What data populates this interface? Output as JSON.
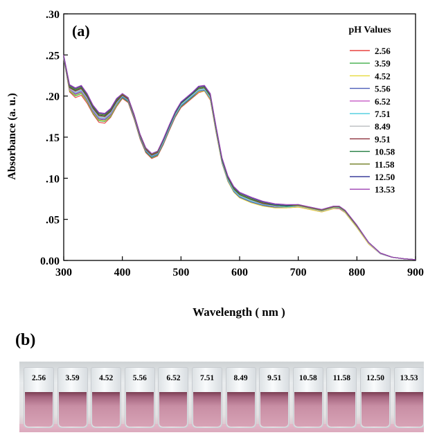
{
  "chart_data": {
    "type": "line",
    "panel_label": "(a)",
    "xlabel": "Wavelength ( nm )",
    "ylabel": "Absorbance (a. u.)",
    "xlim": [
      300,
      900
    ],
    "ylim": [
      0.0,
      0.3
    ],
    "x_ticks": [
      300,
      400,
      500,
      600,
      700,
      800,
      900
    ],
    "x_tick_labels": [
      "300",
      "400",
      "500",
      "600",
      "700",
      "800",
      "900"
    ],
    "y_ticks": [
      0.0,
      0.05,
      0.1,
      0.15,
      0.2,
      0.25,
      0.3
    ],
    "y_tick_labels": [
      "0.00",
      ".05",
      ".10",
      ".15",
      ".20",
      ".25",
      ".30"
    ],
    "grid": false,
    "legend_title": "pH Values",
    "legend_position": "top-right",
    "x": [
      300,
      310,
      320,
      330,
      340,
      350,
      360,
      370,
      380,
      390,
      400,
      410,
      420,
      430,
      440,
      450,
      460,
      470,
      480,
      490,
      500,
      510,
      520,
      530,
      540,
      550,
      560,
      570,
      580,
      590,
      600,
      620,
      640,
      660,
      680,
      700,
      720,
      740,
      760,
      770,
      780,
      800,
      820,
      840,
      860,
      880,
      900
    ],
    "series": [
      {
        "name": "2.56",
        "color": "#e8423f",
        "values": [
          0.245,
          0.205,
          0.198,
          0.201,
          0.191,
          0.178,
          0.168,
          0.167,
          0.174,
          0.187,
          0.197,
          0.192,
          0.172,
          0.148,
          0.131,
          0.124,
          0.127,
          0.141,
          0.158,
          0.174,
          0.186,
          0.192,
          0.198,
          0.204,
          0.206,
          0.195,
          0.155,
          0.118,
          0.096,
          0.084,
          0.077,
          0.071,
          0.067,
          0.064,
          0.064,
          0.065,
          0.062,
          0.059,
          0.063,
          0.063,
          0.058,
          0.04,
          0.02,
          0.008,
          0.004,
          0.002,
          0.001
        ]
      },
      {
        "name": "3.59",
        "color": "#3fae49",
        "values": [
          0.245,
          0.206,
          0.2,
          0.203,
          0.193,
          0.179,
          0.17,
          0.169,
          0.175,
          0.188,
          0.198,
          0.193,
          0.173,
          0.149,
          0.132,
          0.125,
          0.128,
          0.142,
          0.159,
          0.175,
          0.187,
          0.193,
          0.199,
          0.205,
          0.207,
          0.196,
          0.156,
          0.119,
          0.097,
          0.085,
          0.078,
          0.072,
          0.068,
          0.065,
          0.065,
          0.066,
          0.063,
          0.06,
          0.064,
          0.064,
          0.059,
          0.041,
          0.021,
          0.008,
          0.004,
          0.002,
          0.001
        ]
      },
      {
        "name": "4.52",
        "color": "#e6d93a",
        "values": [
          0.246,
          0.207,
          0.201,
          0.204,
          0.194,
          0.18,
          0.171,
          0.17,
          0.176,
          0.189,
          0.199,
          0.194,
          0.174,
          0.15,
          0.133,
          0.126,
          0.129,
          0.143,
          0.16,
          0.176,
          0.188,
          0.194,
          0.2,
          0.205,
          0.206,
          0.196,
          0.156,
          0.118,
          0.096,
          0.083,
          0.076,
          0.07,
          0.066,
          0.064,
          0.064,
          0.065,
          0.062,
          0.059,
          0.063,
          0.064,
          0.058,
          0.04,
          0.02,
          0.008,
          0.004,
          0.002,
          0.001
        ]
      },
      {
        "name": "5.56",
        "color": "#4a5bb8",
        "values": [
          0.246,
          0.208,
          0.202,
          0.205,
          0.195,
          0.181,
          0.172,
          0.171,
          0.177,
          0.19,
          0.199,
          0.194,
          0.174,
          0.15,
          0.133,
          0.126,
          0.129,
          0.143,
          0.16,
          0.176,
          0.188,
          0.194,
          0.2,
          0.206,
          0.207,
          0.197,
          0.157,
          0.119,
          0.097,
          0.084,
          0.077,
          0.071,
          0.067,
          0.065,
          0.065,
          0.066,
          0.063,
          0.06,
          0.064,
          0.064,
          0.059,
          0.041,
          0.021,
          0.008,
          0.004,
          0.002,
          0.001
        ]
      },
      {
        "name": "6.52",
        "color": "#c659c4",
        "values": [
          0.246,
          0.208,
          0.203,
          0.206,
          0.196,
          0.182,
          0.173,
          0.172,
          0.178,
          0.191,
          0.2,
          0.195,
          0.175,
          0.151,
          0.134,
          0.127,
          0.13,
          0.144,
          0.161,
          0.177,
          0.189,
          0.195,
          0.201,
          0.207,
          0.208,
          0.198,
          0.158,
          0.12,
          0.098,
          0.085,
          0.078,
          0.072,
          0.068,
          0.066,
          0.065,
          0.066,
          0.063,
          0.06,
          0.064,
          0.064,
          0.059,
          0.041,
          0.021,
          0.008,
          0.004,
          0.002,
          0.001
        ]
      },
      {
        "name": "7.51",
        "color": "#56d0e0",
        "values": [
          0.247,
          0.209,
          0.204,
          0.207,
          0.197,
          0.183,
          0.174,
          0.173,
          0.179,
          0.191,
          0.2,
          0.195,
          0.175,
          0.151,
          0.134,
          0.127,
          0.13,
          0.144,
          0.161,
          0.177,
          0.189,
          0.195,
          0.201,
          0.207,
          0.208,
          0.198,
          0.158,
          0.12,
          0.098,
          0.085,
          0.078,
          0.072,
          0.068,
          0.066,
          0.065,
          0.066,
          0.063,
          0.06,
          0.064,
          0.064,
          0.059,
          0.041,
          0.021,
          0.008,
          0.004,
          0.002,
          0.001
        ]
      },
      {
        "name": "8.49",
        "color": "#b9bcbf",
        "values": [
          0.247,
          0.209,
          0.205,
          0.208,
          0.198,
          0.184,
          0.175,
          0.174,
          0.18,
          0.192,
          0.201,
          0.196,
          0.176,
          0.152,
          0.135,
          0.128,
          0.131,
          0.145,
          0.162,
          0.178,
          0.19,
          0.196,
          0.202,
          0.208,
          0.209,
          0.199,
          0.159,
          0.121,
          0.099,
          0.086,
          0.079,
          0.073,
          0.069,
          0.066,
          0.066,
          0.066,
          0.063,
          0.06,
          0.064,
          0.065,
          0.059,
          0.041,
          0.021,
          0.008,
          0.004,
          0.002,
          0.001
        ]
      },
      {
        "name": "9.51",
        "color": "#8c2f3a",
        "values": [
          0.248,
          0.21,
          0.206,
          0.209,
          0.199,
          0.185,
          0.176,
          0.175,
          0.181,
          0.193,
          0.201,
          0.196,
          0.176,
          0.152,
          0.135,
          0.128,
          0.131,
          0.146,
          0.163,
          0.179,
          0.191,
          0.197,
          0.203,
          0.209,
          0.21,
          0.2,
          0.16,
          0.122,
          0.1,
          0.087,
          0.08,
          0.074,
          0.069,
          0.067,
          0.066,
          0.067,
          0.064,
          0.061,
          0.065,
          0.065,
          0.06,
          0.042,
          0.022,
          0.009,
          0.004,
          0.002,
          0.001
        ]
      },
      {
        "name": "10.58",
        "color": "#1f7a3d",
        "values": [
          0.248,
          0.211,
          0.207,
          0.21,
          0.2,
          0.186,
          0.177,
          0.176,
          0.182,
          0.194,
          0.202,
          0.197,
          0.177,
          0.153,
          0.136,
          0.129,
          0.132,
          0.146,
          0.163,
          0.179,
          0.191,
          0.197,
          0.203,
          0.209,
          0.21,
          0.2,
          0.16,
          0.122,
          0.1,
          0.087,
          0.08,
          0.074,
          0.07,
          0.067,
          0.066,
          0.067,
          0.064,
          0.061,
          0.065,
          0.065,
          0.06,
          0.042,
          0.022,
          0.009,
          0.004,
          0.002,
          0.001
        ]
      },
      {
        "name": "11.58",
        "color": "#6f7b1f",
        "values": [
          0.249,
          0.212,
          0.208,
          0.211,
          0.201,
          0.187,
          0.178,
          0.177,
          0.183,
          0.195,
          0.202,
          0.197,
          0.177,
          0.153,
          0.136,
          0.129,
          0.132,
          0.147,
          0.164,
          0.18,
          0.192,
          0.198,
          0.204,
          0.21,
          0.211,
          0.201,
          0.161,
          0.123,
          0.101,
          0.088,
          0.081,
          0.075,
          0.07,
          0.068,
          0.067,
          0.067,
          0.064,
          0.061,
          0.065,
          0.065,
          0.06,
          0.042,
          0.022,
          0.009,
          0.004,
          0.002,
          0.001
        ]
      },
      {
        "name": "12.50",
        "color": "#3c3f9b",
        "values": [
          0.249,
          0.213,
          0.209,
          0.212,
          0.202,
          0.188,
          0.179,
          0.178,
          0.184,
          0.196,
          0.203,
          0.198,
          0.178,
          0.154,
          0.137,
          0.13,
          0.133,
          0.147,
          0.164,
          0.18,
          0.192,
          0.198,
          0.204,
          0.211,
          0.212,
          0.202,
          0.162,
          0.124,
          0.102,
          0.089,
          0.082,
          0.076,
          0.071,
          0.068,
          0.067,
          0.068,
          0.065,
          0.062,
          0.066,
          0.066,
          0.061,
          0.043,
          0.022,
          0.009,
          0.004,
          0.002,
          0.001
        ]
      },
      {
        "name": "13.53",
        "color": "#9b3fb2",
        "values": [
          0.25,
          0.214,
          0.21,
          0.213,
          0.203,
          0.189,
          0.18,
          0.179,
          0.185,
          0.197,
          0.203,
          0.198,
          0.178,
          0.154,
          0.137,
          0.13,
          0.133,
          0.148,
          0.165,
          0.181,
          0.193,
          0.199,
          0.205,
          0.212,
          0.213,
          0.203,
          0.163,
          0.125,
          0.103,
          0.09,
          0.083,
          0.077,
          0.072,
          0.069,
          0.068,
          0.068,
          0.065,
          0.062,
          0.066,
          0.066,
          0.061,
          0.043,
          0.022,
          0.009,
          0.004,
          0.002,
          0.001
        ]
      }
    ]
  },
  "photo": {
    "panel_label": "(b)",
    "vial_labels": [
      "2.56",
      "3.59",
      "4.52",
      "5.56",
      "6.52",
      "7.51",
      "8.49",
      "9.51",
      "10.58",
      "11.58",
      "12.50",
      "13.53"
    ]
  }
}
